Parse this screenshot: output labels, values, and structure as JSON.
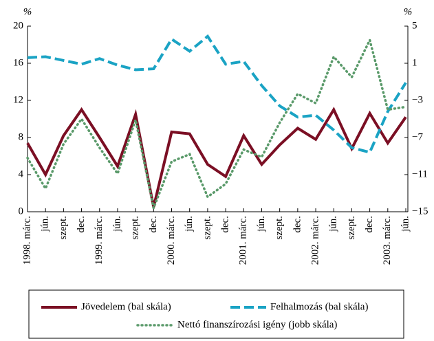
{
  "chart_data": {
    "type": "line",
    "y_label": "%",
    "y2_label": "%",
    "categories": [
      "1998. márc.",
      "jún.",
      "szept.",
      "dec.",
      "1999. márc.",
      "jún.",
      "szept.",
      "dec.",
      "2000. márc.",
      "jún.",
      "szept.",
      "dec.",
      "2001. márc.",
      "jún.",
      "szept.",
      "dec.",
      "2002. márc.",
      "jún.",
      "szept.",
      "dec.",
      "2003. márc.",
      "jún."
    ],
    "series": [
      {
        "name": "Jövedelem (bal skála)",
        "color": "#7b0f24",
        "style": "solid",
        "values": [
          7.4,
          4.0,
          8.2,
          11.0,
          8.0,
          4.9,
          10.5,
          0.5,
          8.6,
          8.4,
          5.1,
          3.8,
          8.2,
          5.1,
          7.2,
          9.0,
          7.8,
          11.0,
          6.8,
          10.6,
          7.4,
          10.2
        ]
      },
      {
        "name": "Felhalmozás (bal skála)",
        "color": "#1aa3c4",
        "style": "dashed",
        "values": [
          16.6,
          16.7,
          16.3,
          15.9,
          16.5,
          15.8,
          15.3,
          15.4,
          18.6,
          17.3,
          18.9,
          15.9,
          16.2,
          13.6,
          11.4,
          10.2,
          10.4,
          8.8,
          6.9,
          6.4,
          10.8,
          13.9
        ]
      },
      {
        "name": "Nettó finanszírozási igény (jobb skála)",
        "color": "#5a9a6a",
        "style": "dotted",
        "axis": "y2",
        "values": [
          -9.2,
          -12.5,
          -7.7,
          -5.0,
          -8.1,
          -10.9,
          -5.1,
          -14.6,
          -9.6,
          -8.8,
          -13.4,
          -12.0,
          -8.3,
          -9.1,
          -5.4,
          -2.3,
          -3.3,
          1.7,
          -0.5,
          3.5,
          -4.0,
          -3.7
        ]
      }
    ],
    "ylim": [
      0,
      20
    ],
    "yticks": [
      0,
      4,
      8,
      12,
      16,
      20
    ],
    "y2lim": [
      -15,
      5
    ],
    "y2ticks": [
      {
        "value": -15,
        "label": "−15"
      },
      {
        "value": -11,
        "label": "−11"
      },
      {
        "value": -7,
        "label": "−7"
      },
      {
        "value": -3,
        "label": "−3"
      },
      1,
      5
    ]
  }
}
